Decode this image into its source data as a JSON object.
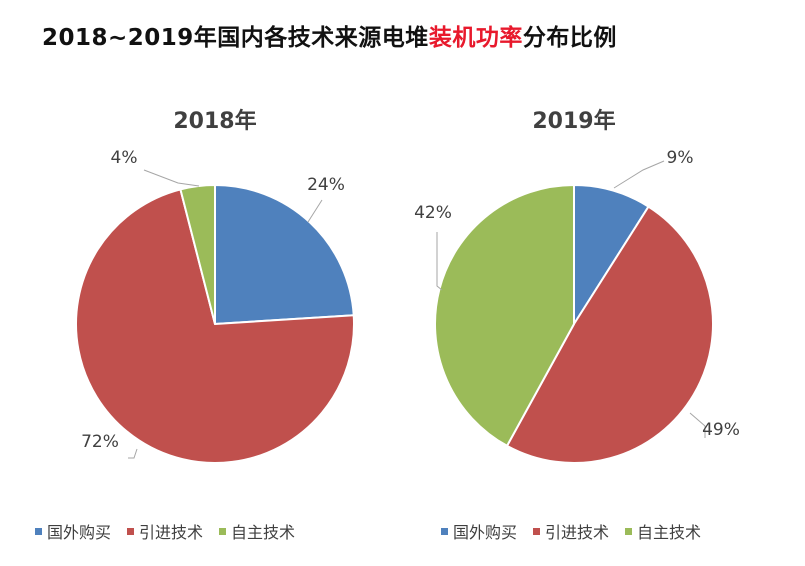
{
  "title": {
    "prefix": "2018~2019年国内各技术来源电堆",
    "highlight": "装机功率",
    "suffix": "分布比例",
    "highlight_color": "#e8192c"
  },
  "chart_data": [
    {
      "type": "pie",
      "title": "2018年",
      "series": [
        {
          "name": "国外购买",
          "value": 24,
          "label": "24%",
          "color": "#4f81bd"
        },
        {
          "name": "引进技术",
          "value": 72,
          "label": "72%",
          "color": "#c0504d"
        },
        {
          "name": "自主技术",
          "value": 4,
          "label": "4%",
          "color": "#9bbb59"
        }
      ],
      "legend": [
        "国外购买",
        "引进技术",
        "自主技术"
      ],
      "legend_position": "bottom"
    },
    {
      "type": "pie",
      "title": "2019年",
      "series": [
        {
          "name": "国外购买",
          "value": 9,
          "label": "9%",
          "color": "#4f81bd"
        },
        {
          "name": "引进技术",
          "value": 49,
          "label": "49%",
          "color": "#c0504d"
        },
        {
          "name": "自主技术",
          "value": 42,
          "label": "42%",
          "color": "#9bbb59"
        }
      ],
      "legend": [
        "国外购买",
        "引进技术",
        "自主技术"
      ],
      "legend_position": "bottom"
    }
  ]
}
